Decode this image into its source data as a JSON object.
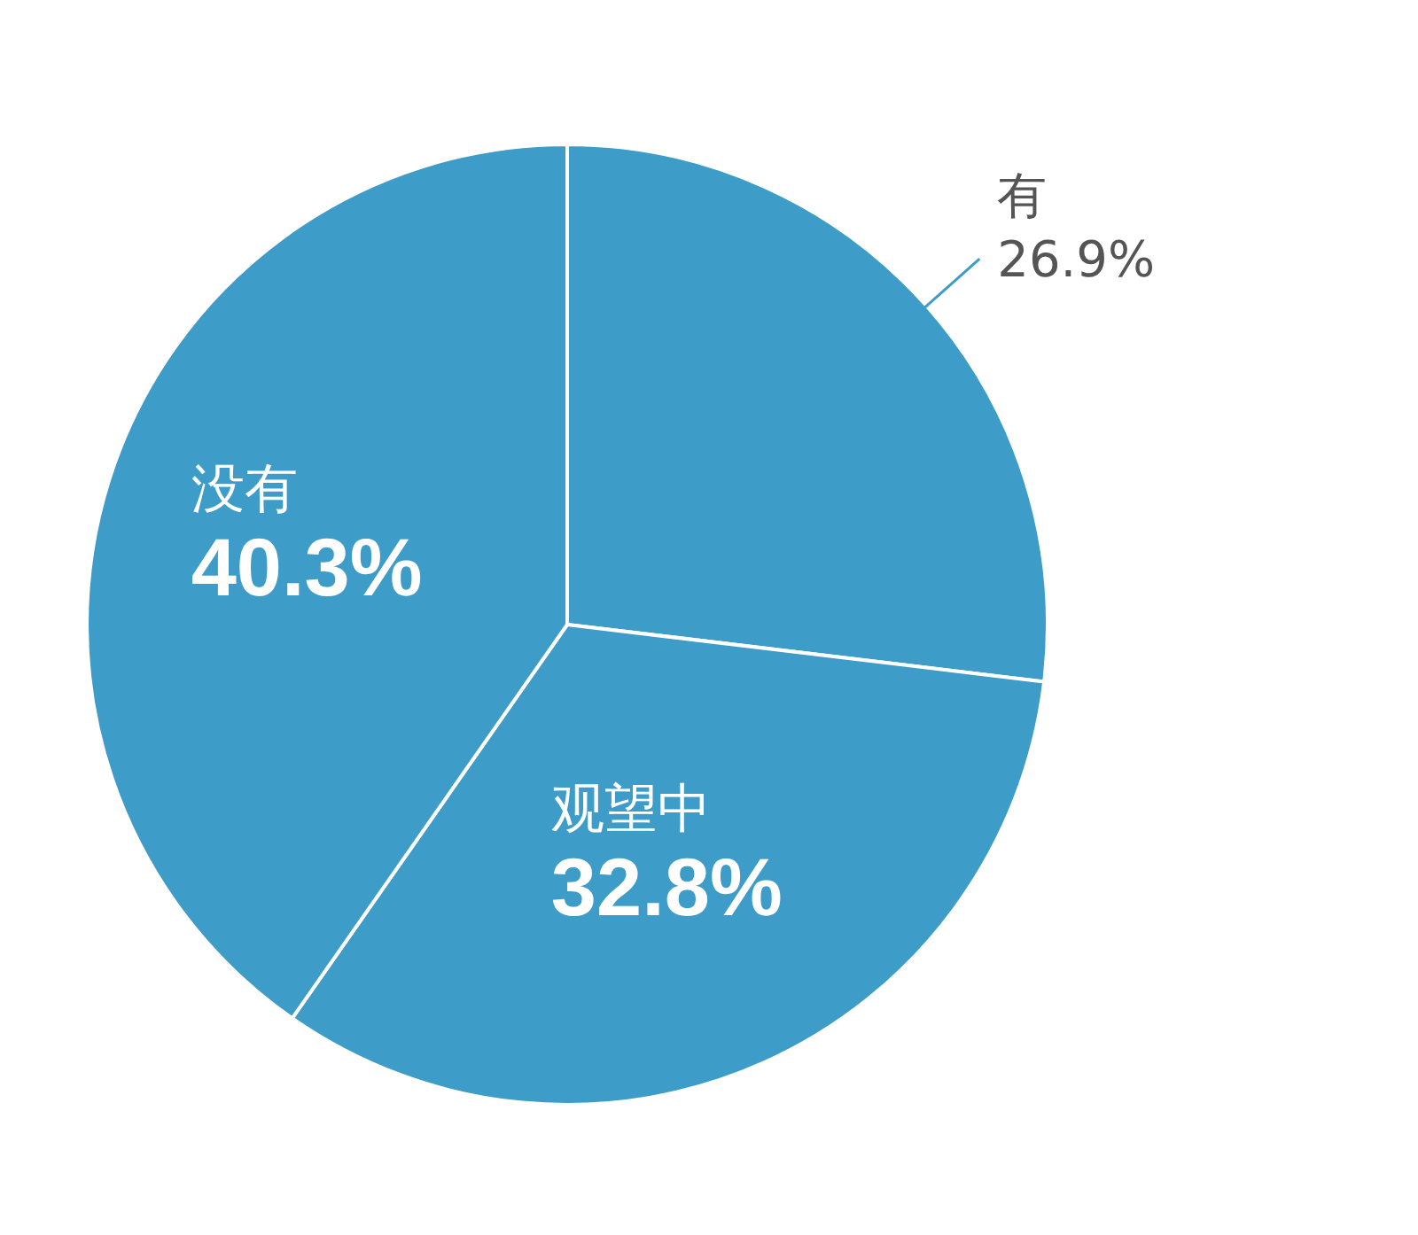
{
  "chart_data": {
    "type": "pie",
    "categories": [
      "有",
      "观望中",
      "没有"
    ],
    "values": [
      26.9,
      32.8,
      40.3
    ],
    "value_labels": [
      "26.9%",
      "32.8%",
      "40.3%"
    ],
    "colors": [
      "#3d9dc8",
      "#3d9dc8",
      "#3d9dc8"
    ],
    "legend": false
  }
}
